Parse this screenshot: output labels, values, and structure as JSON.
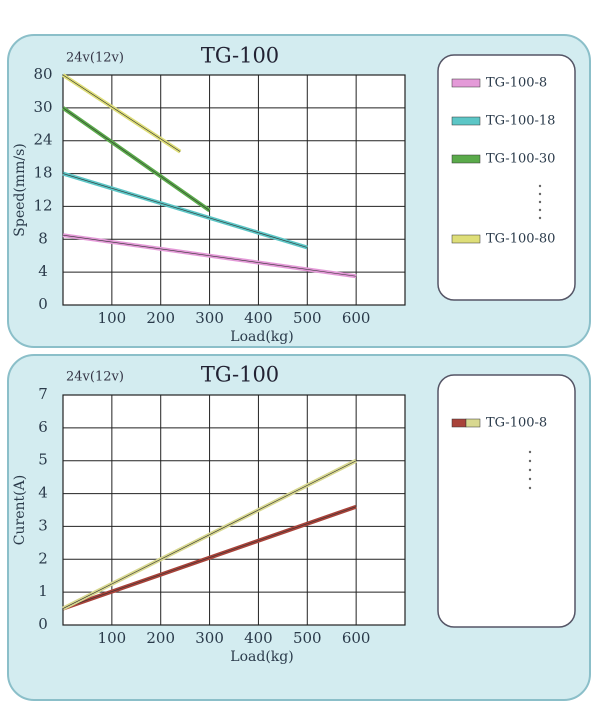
{
  "chart_data": [
    {
      "type": "line",
      "title": "TG-100",
      "subtitle": "24v(12v)",
      "x_label": "Load(kg)",
      "y_label": "Speed(mm/s)",
      "xlim": [
        0,
        700
      ],
      "xticks": [
        100,
        200,
        300,
        400,
        500,
        600
      ],
      "ylim": [
        0,
        80
      ],
      "yticks": [
        0,
        4,
        8,
        12,
        18,
        24,
        30,
        80
      ],
      "y_scale": "piecewise",
      "grid": true,
      "series": [
        {
          "name": "TG-100-8",
          "color": "#e49ad8",
          "x": [
            0,
            600
          ],
          "values": [
            8.5,
            3.5
          ]
        },
        {
          "name": "TG-100-18",
          "color": "#5cc6c6",
          "x": [
            0,
            500
          ],
          "values": [
            18,
            7
          ]
        },
        {
          "name": "TG-100-30",
          "color": "#5aaa4a",
          "x": [
            0,
            300
          ],
          "values": [
            30,
            11.5
          ]
        },
        {
          "name": "TG-100-80",
          "color": "#dede78",
          "x": [
            0,
            240
          ],
          "values": [
            80,
            22
          ]
        }
      ]
    },
    {
      "type": "line",
      "title": "TG-100",
      "subtitle": "24v(12v)",
      "x_label": "Load(kg)",
      "y_label": "Curent(A)",
      "xlim": [
        0,
        700
      ],
      "xticks": [
        100,
        200,
        300,
        400,
        500,
        600
      ],
      "ylim": [
        0,
        7
      ],
      "yticks": [
        0,
        1,
        2,
        3,
        4,
        5,
        6,
        7
      ],
      "y_scale": "linear",
      "grid": true,
      "series": [
        {
          "name": "TG-100-8",
          "color": "#a8433a",
          "x": [
            0,
            600
          ],
          "values": [
            0.5,
            3.6
          ]
        },
        {
          "color": "#d8d890",
          "x": [
            0,
            600
          ],
          "values": [
            0.5,
            5.0
          ]
        }
      ]
    }
  ]
}
